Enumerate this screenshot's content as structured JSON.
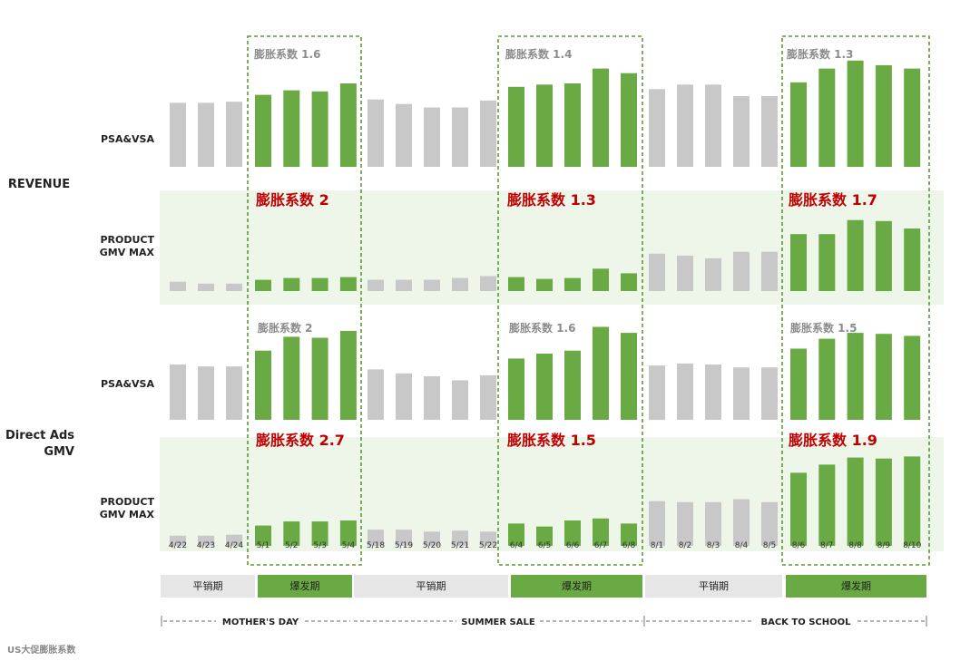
{
  "colors": {
    "base_bar": "#c8c8c8",
    "peak_bar": "#6aaa45",
    "band_bg": "#eef5e9",
    "dashed_box": "#5b9a35",
    "coef_gray": "#8c8c8c",
    "coef_red": "#c00000",
    "phase_base_bg": "#e6e6e6",
    "phase_peak_bg": "#6aaa45"
  },
  "row_groups": [
    {
      "label": "REVENUE"
    },
    {
      "label_lines": [
        "Direct Ads",
        "GMV"
      ]
    }
  ],
  "chart_data": {
    "type": "bar",
    "title": "",
    "x_labels": [
      "4/22",
      "4/23",
      "4/24",
      "5/1",
      "5/2",
      "5/3",
      "5/4",
      "5/18",
      "5/19",
      "5/20",
      "5/21",
      "5/22",
      "6/4",
      "6/5",
      "6/6",
      "6/7",
      "6/8",
      "8/1",
      "8/2",
      "8/3",
      "8/4",
      "8/5",
      "8/6",
      "8/7",
      "8/8",
      "8/9",
      "8/10"
    ],
    "peak_flags": [
      false,
      false,
      false,
      true,
      true,
      true,
      true,
      false,
      false,
      false,
      false,
      false,
      true,
      true,
      true,
      true,
      true,
      false,
      false,
      false,
      false,
      false,
      true,
      true,
      true,
      true,
      true
    ],
    "ylim": [
      0,
      100
    ],
    "panels": [
      {
        "group": "REVENUE",
        "label": "PSA&VSA",
        "shaded": false,
        "values": [
          56,
          56,
          57,
          63,
          67,
          66,
          73,
          59,
          55,
          52,
          52,
          58,
          70,
          72,
          73,
          86,
          82,
          68,
          72,
          72,
          62,
          62,
          74,
          86,
          93,
          89,
          86
        ],
        "coefficients": [
          "膨胀系数 1.6",
          "膨胀系数 1.4",
          "膨胀系数 1.3"
        ],
        "coef_style": "gray"
      },
      {
        "group": "REVENUE",
        "label_lines": [
          "PRODUCT",
          "GMV MAX"
        ],
        "shaded": false,
        "values": [
          10,
          8,
          8,
          12,
          14,
          14,
          15,
          12,
          12,
          12,
          14,
          16,
          15,
          13,
          14,
          24,
          19,
          40,
          38,
          35,
          42,
          42,
          61,
          61,
          76,
          75,
          67
        ],
        "coefficients": [
          "膨胀系数 2",
          "膨胀系数 1.3",
          "膨胀系数 1.7"
        ],
        "coef_style": "red"
      },
      {
        "group": "Direct Ads GMV",
        "label": "PSA&VSA",
        "shaded": false,
        "values": [
          56,
          54,
          54,
          70,
          84,
          83,
          90,
          51,
          47,
          44,
          40,
          45,
          62,
          67,
          70,
          94,
          88,
          55,
          57,
          56,
          53,
          53,
          72,
          82,
          88,
          87,
          85
        ],
        "coefficients": [
          "膨胀系数 2",
          "膨胀系数 1.6",
          "膨胀系数 1.5"
        ],
        "coef_style": "gray"
      },
      {
        "group": "Direct Ads GMV",
        "label_lines": [
          "PRODUCT",
          "GMV MAX"
        ],
        "shaded": false,
        "values": [
          10,
          10,
          11,
          20,
          24,
          24,
          25,
          16,
          16,
          14,
          15,
          14,
          22,
          19,
          25,
          27,
          22,
          44,
          43,
          43,
          46,
          43,
          72,
          80,
          87,
          86,
          88
        ],
        "coefficients": [
          "膨胀系数 2.7",
          "膨胀系数 1.5",
          "膨胀系数 1.9"
        ],
        "coef_style": "red"
      }
    ],
    "phases": [
      {
        "label": "平销期",
        "type": "base"
      },
      {
        "label": "爆发期",
        "type": "peak"
      },
      {
        "label": "平销期",
        "type": "base"
      },
      {
        "label": "爆发期",
        "type": "peak"
      },
      {
        "label": "平销期",
        "type": "base"
      },
      {
        "label": "爆发期",
        "type": "peak"
      }
    ],
    "events": [
      "MOTHER'S DAY",
      "SUMMER SALE",
      "BACK TO SCHOOL"
    ]
  },
  "footer": "US大促膨胀系数"
}
